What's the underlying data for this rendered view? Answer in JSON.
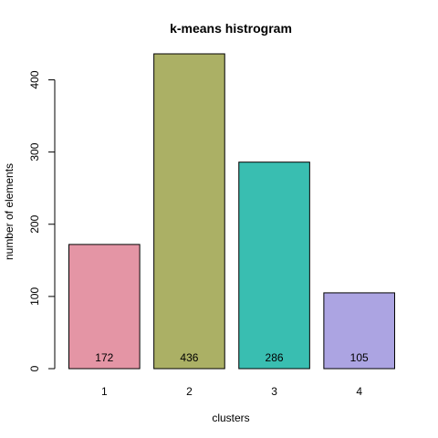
{
  "chart_data": {
    "type": "bar",
    "title": "k-means histrogram",
    "xlabel": "clusters",
    "ylabel": "number of elements",
    "categories": [
      "1",
      "2",
      "3",
      "4"
    ],
    "values": [
      172,
      436,
      286,
      105
    ],
    "data_labels": [
      "172",
      "436",
      "286",
      "105"
    ],
    "colors": [
      "#E495A5",
      "#ABB065",
      "#39BEB1",
      "#ACA4E2"
    ],
    "yticks": [
      0,
      100,
      200,
      300,
      400
    ],
    "ytick_labels": [
      "0",
      "100",
      "200",
      "300",
      "400"
    ],
    "ylim": [
      0,
      436
    ],
    "grid": false,
    "legend": "none"
  }
}
